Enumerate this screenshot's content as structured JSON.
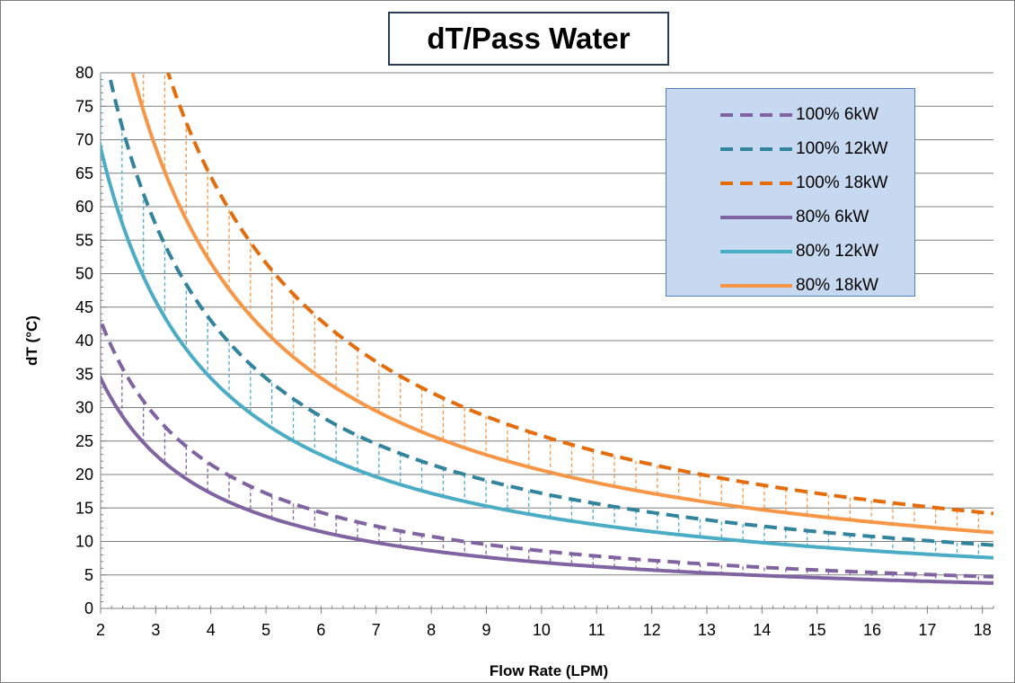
{
  "chart_data": {
    "type": "line",
    "title": "dT/Pass Water",
    "xlabel": "Flow Rate (LPM)",
    "ylabel": "dT (°C)",
    "xlim": [
      2,
      18.2
    ],
    "ylim": [
      0,
      80
    ],
    "x_ticks": [
      2,
      3,
      4,
      5,
      6,
      7,
      8,
      9,
      10,
      11,
      12,
      13,
      14,
      15,
      16,
      17,
      18
    ],
    "y_ticks": [
      0,
      5,
      10,
      15,
      20,
      25,
      30,
      35,
      40,
      45,
      50,
      55,
      60,
      65,
      70,
      75,
      80
    ],
    "grid": "horizontal",
    "legend_position": "top-right",
    "series": [
      {
        "name": "100% 6kW",
        "style": "dashed",
        "color": "#8064a2",
        "k": 86
      },
      {
        "name": "100% 12kW",
        "style": "dashed",
        "color": "#31849b",
        "k": 172
      },
      {
        "name": "100% 18kW",
        "style": "dashed",
        "color": "#e46c0a",
        "k": 258
      },
      {
        "name": "80% 6kW",
        "style": "solid",
        "color": "#8064a2",
        "k": 68.8
      },
      {
        "name": "80% 12kW",
        "style": "solid",
        "color": "#4bacc6",
        "k": 137.6
      },
      {
        "name": "80% 18kW",
        "style": "solid",
        "color": "#f79646",
        "k": 206.4
      }
    ],
    "drop_lines": [
      {
        "from": "100% 6kW",
        "to": "80% 6kW",
        "color": "#8064a2"
      },
      {
        "from": "100% 12kW",
        "to": "80% 12kW",
        "color": "#4bacc6"
      },
      {
        "from": "100% 18kW",
        "to": "80% 18kW",
        "color": "#f79646"
      }
    ]
  }
}
